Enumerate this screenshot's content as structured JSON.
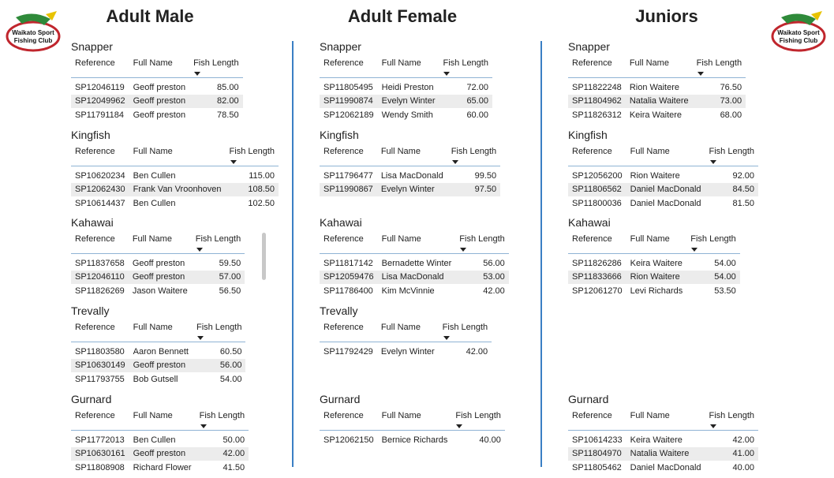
{
  "logo": {
    "line1": "Waikato Sport",
    "line2": "Fishing Club"
  },
  "columns": [
    {
      "title": "Adult Male",
      "sections": [
        {
          "name": "Snapper",
          "headers": [
            "Reference",
            "Full Name",
            "Fish Length"
          ],
          "rows": [
            [
              "SP12046119",
              "Geoff preston",
              "85.00"
            ],
            [
              "SP12049962",
              "Geoff preston",
              "82.00"
            ],
            [
              "SP11791184",
              "Geoff preston",
              "78.50"
            ]
          ]
        },
        {
          "name": "Kingfish",
          "headers": [
            "Reference",
            "Full Name",
            "Fish Length"
          ],
          "rows": [
            [
              "SP10620234",
              "Ben Cullen",
              "115.00"
            ],
            [
              "SP12062430",
              "Frank Van Vroonhoven",
              "108.50"
            ],
            [
              "SP10614437",
              "Ben Cullen",
              "102.50"
            ]
          ]
        },
        {
          "name": "Kahawai",
          "headers": [
            "Reference",
            "Full Name",
            "Fish Length"
          ],
          "rows": [
            [
              "SP11837658",
              "Geoff preston",
              "59.50"
            ],
            [
              "SP12046110",
              "Geoff preston",
              "57.00"
            ],
            [
              "SP11826269",
              "Jason Waitere",
              "56.50"
            ]
          ]
        },
        {
          "name": "Trevally",
          "headers": [
            "Reference",
            "Full Name",
            "Fish Length"
          ],
          "rows": [
            [
              "SP11803580",
              "Aaron Bennett",
              "60.50"
            ],
            [
              "SP10630149",
              "Geoff preston",
              "56.00"
            ],
            [
              "SP11793755",
              "Bob Gutsell",
              "54.00"
            ]
          ]
        },
        {
          "name": "Gurnard",
          "headers": [
            "Reference",
            "Full Name",
            "Fish Length"
          ],
          "rows": [
            [
              "SP11772013",
              "Ben Cullen",
              "50.00"
            ],
            [
              "SP10630161",
              "Geoff preston",
              "42.00"
            ],
            [
              "SP11808908",
              "Richard Flower",
              "41.50"
            ]
          ]
        }
      ]
    },
    {
      "title": "Adult Female",
      "sections": [
        {
          "name": "Snapper",
          "headers": [
            "Reference",
            "Full Name",
            "Fish Length"
          ],
          "rows": [
            [
              "SP11805495",
              "Heidi Preston",
              "72.00"
            ],
            [
              "SP11990874",
              "Evelyn Winter",
              "65.00"
            ],
            [
              "SP12062189",
              "Wendy Smith",
              "60.00"
            ]
          ]
        },
        {
          "name": "Kingfish",
          "headers": [
            "Reference",
            "Full Name",
            "Fish Length"
          ],
          "rows": [
            [
              "SP11796477",
              "Lisa MacDonald",
              "99.50"
            ],
            [
              "SP11990867",
              "Evelyn Winter",
              "97.50"
            ]
          ]
        },
        {
          "name": "Kahawai",
          "headers": [
            "Reference",
            "Full Name",
            "Fish Length"
          ],
          "rows": [
            [
              "SP11817142",
              "Bernadette Winter",
              "56.00"
            ],
            [
              "SP12059476",
              "Lisa MacDonald",
              "53.00"
            ],
            [
              "SP11786400",
              "Kim McVinnie",
              "42.00"
            ]
          ]
        },
        {
          "name": "Trevally",
          "headers": [
            "Reference",
            "Full Name",
            "Fish Length"
          ],
          "rows": [
            [
              "SP11792429",
              "Evelyn Winter",
              "42.00"
            ]
          ]
        },
        {
          "name": "Gurnard",
          "headers": [
            "Reference",
            "Full Name",
            "Fish Length"
          ],
          "rows": [
            [
              "SP12062150",
              "Bernice Richards",
              "40.00"
            ]
          ]
        }
      ]
    },
    {
      "title": "Juniors",
      "sections": [
        {
          "name": "Snapper",
          "headers": [
            "Reference",
            "Full Name",
            "Fish Length"
          ],
          "rows": [
            [
              "SP11822248",
              "Rion Waitere",
              "76.50"
            ],
            [
              "SP11804962",
              "Natalia Waitere",
              "73.00"
            ],
            [
              "SP11826312",
              "Keira Waitere",
              "68.00"
            ]
          ]
        },
        {
          "name": "Kingfish",
          "headers": [
            "Reference",
            "Full Name",
            "Fish Length"
          ],
          "rows": [
            [
              "SP12056200",
              "Rion Waitere",
              "92.00"
            ],
            [
              "SP11806562",
              "Daniel MacDonald",
              "84.50"
            ],
            [
              "SP11800036",
              "Daniel MacDonald",
              "81.50"
            ]
          ]
        },
        {
          "name": "Kahawai",
          "headers": [
            "Reference",
            "Full Name",
            "Fish Length"
          ],
          "rows": [
            [
              "SP11826286",
              "Keira Waitere",
              "54.00"
            ],
            [
              "SP11833666",
              "Rion Waitere",
              "54.00"
            ],
            [
              "SP12061270",
              "Levi Richards",
              "53.50"
            ]
          ]
        },
        {
          "name": "Gurnard",
          "headers": [
            "Reference",
            "Full Name",
            "Fish Length"
          ],
          "rows": [
            [
              "SP10614233",
              "Keira Waitere",
              "42.00"
            ],
            [
              "SP11804970",
              "Natalia Waitere",
              "41.00"
            ],
            [
              "SP11805462",
              "Daniel MacDonald",
              "40.00"
            ]
          ]
        }
      ]
    }
  ]
}
